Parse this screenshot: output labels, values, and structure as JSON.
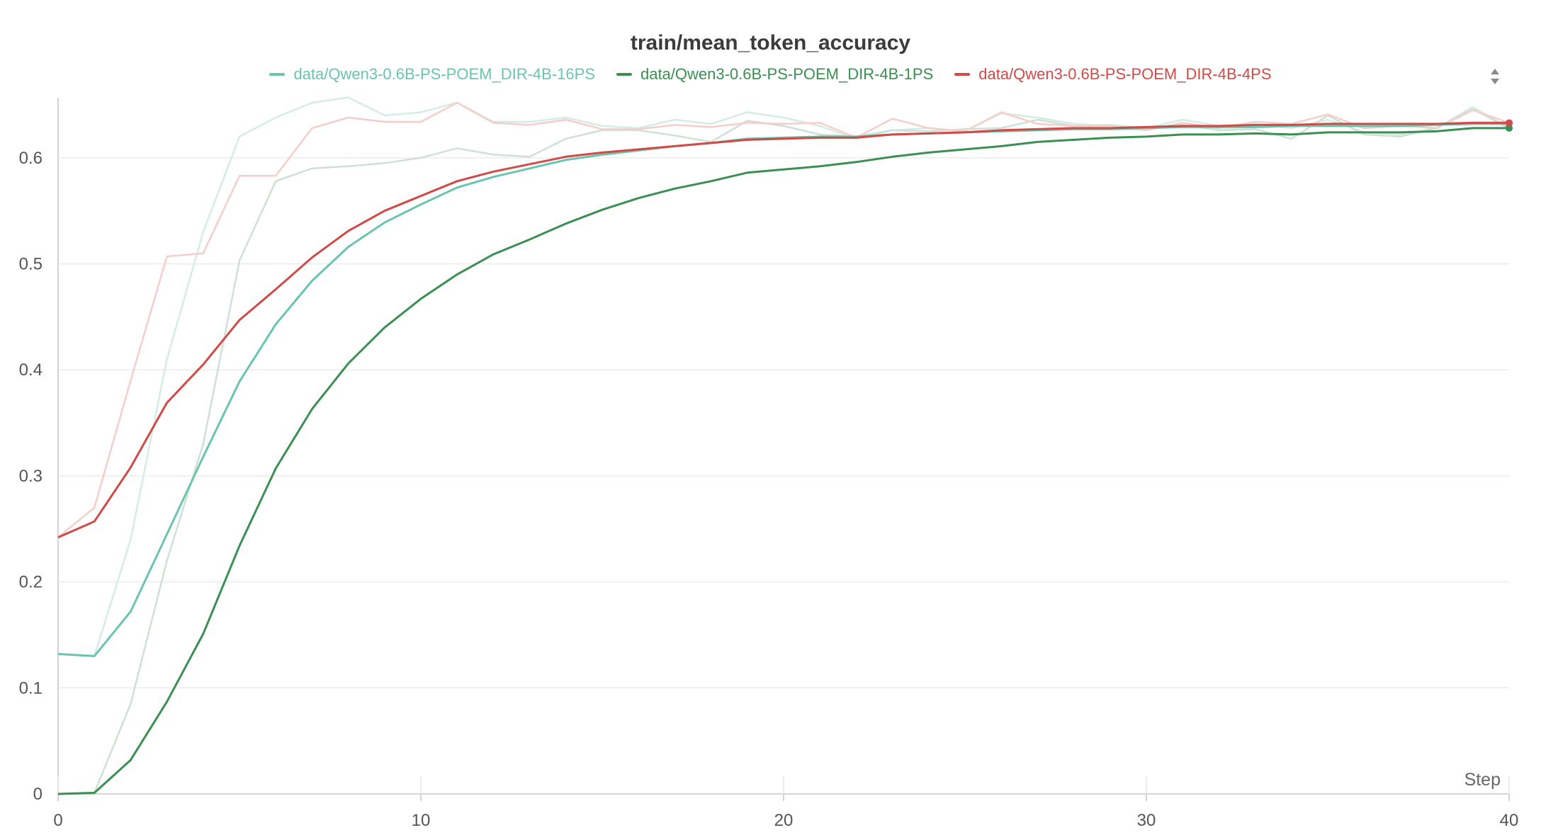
{
  "chart_data": {
    "type": "line",
    "title": "train/mean_token_accuracy",
    "xlabel": "Step",
    "ylabel": "",
    "xlim": [
      0,
      40
    ],
    "ylim": [
      0,
      0.65
    ],
    "x_ticks": [
      "0",
      "10",
      "20",
      "30",
      "40"
    ],
    "y_ticks": [
      "0",
      "0.1",
      "0.2",
      "0.3",
      "0.4",
      "0.5",
      "0.6"
    ],
    "grid": true,
    "legend_position": "top-center",
    "x": [
      0,
      1,
      2,
      3,
      4,
      5,
      6,
      7,
      8,
      9,
      10,
      11,
      12,
      13,
      14,
      15,
      16,
      17,
      18,
      19,
      20,
      21,
      22,
      23,
      24,
      25,
      26,
      27,
      28,
      29,
      30,
      31,
      32,
      33,
      34,
      35,
      36,
      37,
      38,
      39,
      40
    ],
    "series": [
      {
        "name": "data/Qwen3-0.6B-PS-POEM_DIR-4B-16PS",
        "color": "#6bc4ad",
        "smoothed": [
          0.132,
          0.13,
          0.172,
          0.245,
          0.318,
          0.389,
          0.443,
          0.484,
          0.516,
          0.539,
          0.556,
          0.572,
          0.582,
          0.59,
          0.598,
          0.603,
          0.607,
          0.611,
          0.614,
          0.618,
          0.619,
          0.62,
          0.62,
          0.622,
          0.623,
          0.624,
          0.625,
          0.626,
          0.627,
          0.627,
          0.628,
          0.629,
          0.629,
          0.629,
          0.63,
          0.63,
          0.63,
          0.63,
          0.631,
          0.632,
          0.632
        ],
        "raw": [
          0.132,
          0.13,
          0.24,
          0.41,
          0.53,
          0.62,
          0.638,
          0.652,
          0.657,
          0.64,
          0.643,
          0.652,
          0.634,
          0.634,
          0.638,
          0.63,
          0.628,
          0.636,
          0.632,
          0.643,
          0.638,
          0.63,
          0.618,
          0.626,
          0.628,
          0.625,
          0.642,
          0.638,
          0.632,
          0.63,
          0.628,
          0.636,
          0.63,
          0.632,
          0.628,
          0.636,
          0.624,
          0.622,
          0.628,
          0.648,
          0.628
        ]
      },
      {
        "name": "data/Qwen3-0.6B-PS-POEM_DIR-4B-1PS",
        "color": "#3c8f52",
        "smoothed": [
          0.0,
          0.001,
          0.032,
          0.087,
          0.151,
          0.234,
          0.307,
          0.363,
          0.406,
          0.44,
          0.467,
          0.49,
          0.509,
          0.523,
          0.538,
          0.551,
          0.562,
          0.571,
          0.578,
          0.586,
          0.589,
          0.592,
          0.596,
          0.601,
          0.605,
          0.608,
          0.611,
          0.615,
          0.617,
          0.619,
          0.62,
          0.622,
          0.622,
          0.623,
          0.622,
          0.624,
          0.624,
          0.624,
          0.625,
          0.628,
          0.628
        ],
        "raw": [
          0.0,
          0.001,
          0.085,
          0.22,
          0.33,
          0.503,
          0.578,
          0.59,
          0.592,
          0.595,
          0.6,
          0.609,
          0.603,
          0.601,
          0.618,
          0.626,
          0.626,
          0.621,
          0.615,
          0.635,
          0.63,
          0.622,
          0.62,
          0.626,
          0.625,
          0.627,
          0.628,
          0.636,
          0.63,
          0.631,
          0.628,
          0.631,
          0.626,
          0.627,
          0.618,
          0.64,
          0.622,
          0.62,
          0.628,
          0.646,
          0.628
        ]
      },
      {
        "name": "data/Qwen3-0.6B-PS-POEM_DIR-4B-4PS",
        "color": "#d04a47",
        "smoothed": [
          0.242,
          0.257,
          0.308,
          0.369,
          0.405,
          0.447,
          0.476,
          0.506,
          0.531,
          0.55,
          0.564,
          0.578,
          0.587,
          0.594,
          0.601,
          0.605,
          0.608,
          0.611,
          0.614,
          0.617,
          0.618,
          0.619,
          0.619,
          0.622,
          0.623,
          0.624,
          0.626,
          0.627,
          0.628,
          0.628,
          0.629,
          0.63,
          0.63,
          0.631,
          0.631,
          0.632,
          0.632,
          0.632,
          0.632,
          0.633,
          0.633
        ],
        "raw": [
          0.242,
          0.27,
          0.39,
          0.507,
          0.51,
          0.583,
          0.583,
          0.628,
          0.638,
          0.634,
          0.634,
          0.652,
          0.633,
          0.631,
          0.636,
          0.627,
          0.627,
          0.631,
          0.629,
          0.633,
          0.632,
          0.633,
          0.619,
          0.637,
          0.628,
          0.625,
          0.643,
          0.632,
          0.63,
          0.63,
          0.626,
          0.633,
          0.628,
          0.634,
          0.632,
          0.641,
          0.628,
          0.63,
          0.628,
          0.645,
          0.633
        ]
      }
    ]
  }
}
